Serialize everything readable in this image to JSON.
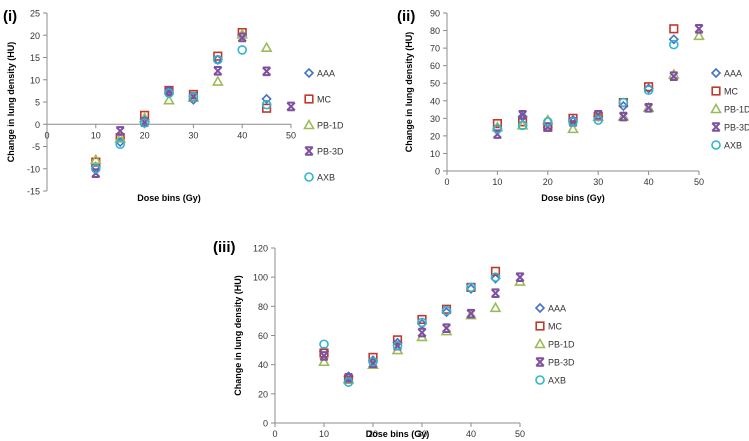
{
  "series_styles": [
    {
      "name": "AAA",
      "marker": "diamond",
      "color": "#4472C4"
    },
    {
      "name": "MC",
      "marker": "square",
      "color": "#C0392B"
    },
    {
      "name": "PB-1D",
      "marker": "triangle",
      "color": "#9BBB59"
    },
    {
      "name": "PB-3D",
      "marker": "x",
      "color": "#7F4FA0"
    },
    {
      "name": "AXB",
      "marker": "circle",
      "color": "#31B4D0"
    }
  ],
  "chart_data": [
    {
      "type": "scatter",
      "panel_label": "(i)",
      "xlabel": "Dose bins (Gy)",
      "ylabel": "Change in lung density (HU)",
      "xlim": [
        0,
        50
      ],
      "ylim": [
        -15,
        25
      ],
      "xticks": [
        "0",
        "10",
        "20",
        "30",
        "40",
        "50"
      ],
      "yticks": [
        "-15",
        "-10",
        "-5",
        "0",
        "5",
        "10",
        "15",
        "20",
        "25"
      ],
      "legend": [
        "AAA",
        "MC",
        "PB-1D",
        "PB-3D",
        "AXB"
      ],
      "series": [
        {
          "name": "AAA",
          "x": [
            10,
            15,
            20,
            25,
            30,
            35,
            40,
            45
          ],
          "y": [
            -9.5,
            -4,
            1,
            7,
            5.5,
            14.5,
            20,
            5.7
          ]
        },
        {
          "name": "MC",
          "x": [
            10,
            15,
            20,
            25,
            30,
            35,
            40,
            45
          ],
          "y": [
            -8.5,
            -3,
            2,
            7.6,
            6.7,
            15.3,
            20.6,
            3.6
          ]
        },
        {
          "name": "PB-1D",
          "x": [
            10,
            15,
            20,
            25,
            30,
            35,
            40,
            45
          ],
          "y": [
            -8,
            -3.2,
            1.4,
            5.4,
            6,
            9.6,
            20.2,
            17.2
          ]
        },
        {
          "name": "PB-3D",
          "x": [
            10,
            15,
            20,
            25,
            30,
            35,
            40,
            45,
            50
          ],
          "y": [
            -11,
            -1.5,
            0.5,
            7.4,
            6.2,
            12,
            19.5,
            11.9,
            4
          ]
        },
        {
          "name": "AXB",
          "x": [
            10,
            15,
            20,
            25,
            30,
            35,
            40,
            45
          ],
          "y": [
            -10,
            -4.5,
            0.3,
            7,
            6.2,
            14.5,
            16.7,
            4.4
          ]
        }
      ]
    },
    {
      "type": "scatter",
      "panel_label": "(ii)",
      "xlabel": "Dose bins (Gy)",
      "ylabel": "Change in lung density (HU)",
      "xlim": [
        0,
        50
      ],
      "ylim": [
        0,
        90
      ],
      "xticks": [
        "0",
        "10",
        "20",
        "30",
        "40",
        "50"
      ],
      "yticks": [
        "0",
        "10",
        "20",
        "30",
        "40",
        "50",
        "60",
        "70",
        "80",
        "90"
      ],
      "legend": [
        "AAA",
        "MC",
        "PB-1D",
        "PB-3D",
        "AXB"
      ],
      "series": [
        {
          "name": "AAA",
          "x": [
            10,
            15,
            20,
            25,
            30,
            35,
            40,
            45
          ],
          "y": [
            24,
            31,
            25,
            29,
            31,
            37,
            47,
            75
          ]
        },
        {
          "name": "MC",
          "x": [
            10,
            15,
            20,
            25,
            30,
            35,
            40,
            45
          ],
          "y": [
            27,
            28,
            25,
            30,
            31,
            39,
            48,
            81
          ]
        },
        {
          "name": "PB-1D",
          "x": [
            10,
            15,
            20,
            25,
            30,
            35,
            40,
            45,
            50
          ],
          "y": [
            25,
            26,
            29,
            24,
            31,
            31,
            36,
            55,
            77
          ]
        },
        {
          "name": "PB-3D",
          "x": [
            10,
            15,
            20,
            25,
            30,
            35,
            40,
            45,
            50
          ],
          "y": [
            21,
            32,
            25,
            28,
            32,
            31,
            36,
            54,
            81
          ]
        },
        {
          "name": "AXB",
          "x": [
            10,
            15,
            20,
            25,
            30,
            35,
            40,
            45
          ],
          "y": [
            24,
            26,
            28,
            28,
            29,
            39,
            46,
            72
          ]
        }
      ]
    },
    {
      "type": "scatter",
      "panel_label": "(iii)",
      "xlabel": "Dose bins (Gy)",
      "ylabel": "Change in lung density (HU)",
      "xlim": [
        0,
        50
      ],
      "ylim": [
        0,
        120
      ],
      "xticks": [
        "0",
        "10",
        "20",
        "30",
        "40",
        "50"
      ],
      "yticks": [
        "0",
        "20",
        "40",
        "60",
        "80",
        "100",
        "120"
      ],
      "legend": [
        "AAA",
        "MC",
        "PB-1D",
        "PB-3D",
        "AXB"
      ],
      "series": [
        {
          "name": "AAA",
          "x": [
            10,
            15,
            20,
            25,
            30,
            35,
            40,
            45
          ],
          "y": [
            49,
            32,
            43,
            55,
            68,
            76,
            92,
            99
          ]
        },
        {
          "name": "MC",
          "x": [
            10,
            15,
            20,
            25,
            30,
            35,
            40,
            45
          ],
          "y": [
            48,
            30,
            45,
            57,
            71,
            78,
            93,
            104
          ]
        },
        {
          "name": "PB-1D",
          "x": [
            10,
            15,
            20,
            25,
            30,
            35,
            40,
            45,
            50
          ],
          "y": [
            42,
            30,
            40,
            50,
            59,
            63,
            74,
            79,
            97
          ]
        },
        {
          "name": "PB-3D",
          "x": [
            10,
            15,
            20,
            25,
            30,
            35,
            40,
            45,
            50
          ],
          "y": [
            46,
            31,
            41,
            53,
            62,
            65,
            75,
            89,
            100
          ]
        },
        {
          "name": "AXB",
          "x": [
            10,
            15,
            20,
            25,
            30,
            35,
            40,
            45
          ],
          "y": [
            54,
            28,
            42,
            53,
            69,
            77,
            93,
            100
          ]
        }
      ]
    }
  ]
}
